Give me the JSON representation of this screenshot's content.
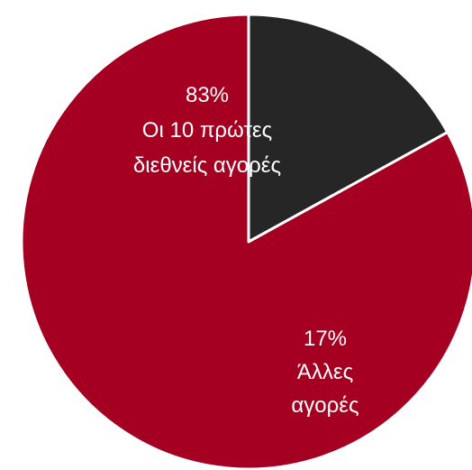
{
  "chart_data": {
    "type": "pie",
    "title": "",
    "start_angle_deg": 0,
    "direction": "clockwise",
    "slices": [
      {
        "value": 17,
        "percent_label": "17%",
        "label_lines": [
          "Άλλες",
          "αγορές"
        ],
        "color": "#262626"
      },
      {
        "value": 83,
        "percent_label": "83%",
        "label_lines": [
          "Οι 10 πρώτες",
          "διεθνείς αγορές"
        ],
        "color": "#A50021"
      }
    ],
    "border_color": "#ffffff",
    "legend": "none"
  }
}
